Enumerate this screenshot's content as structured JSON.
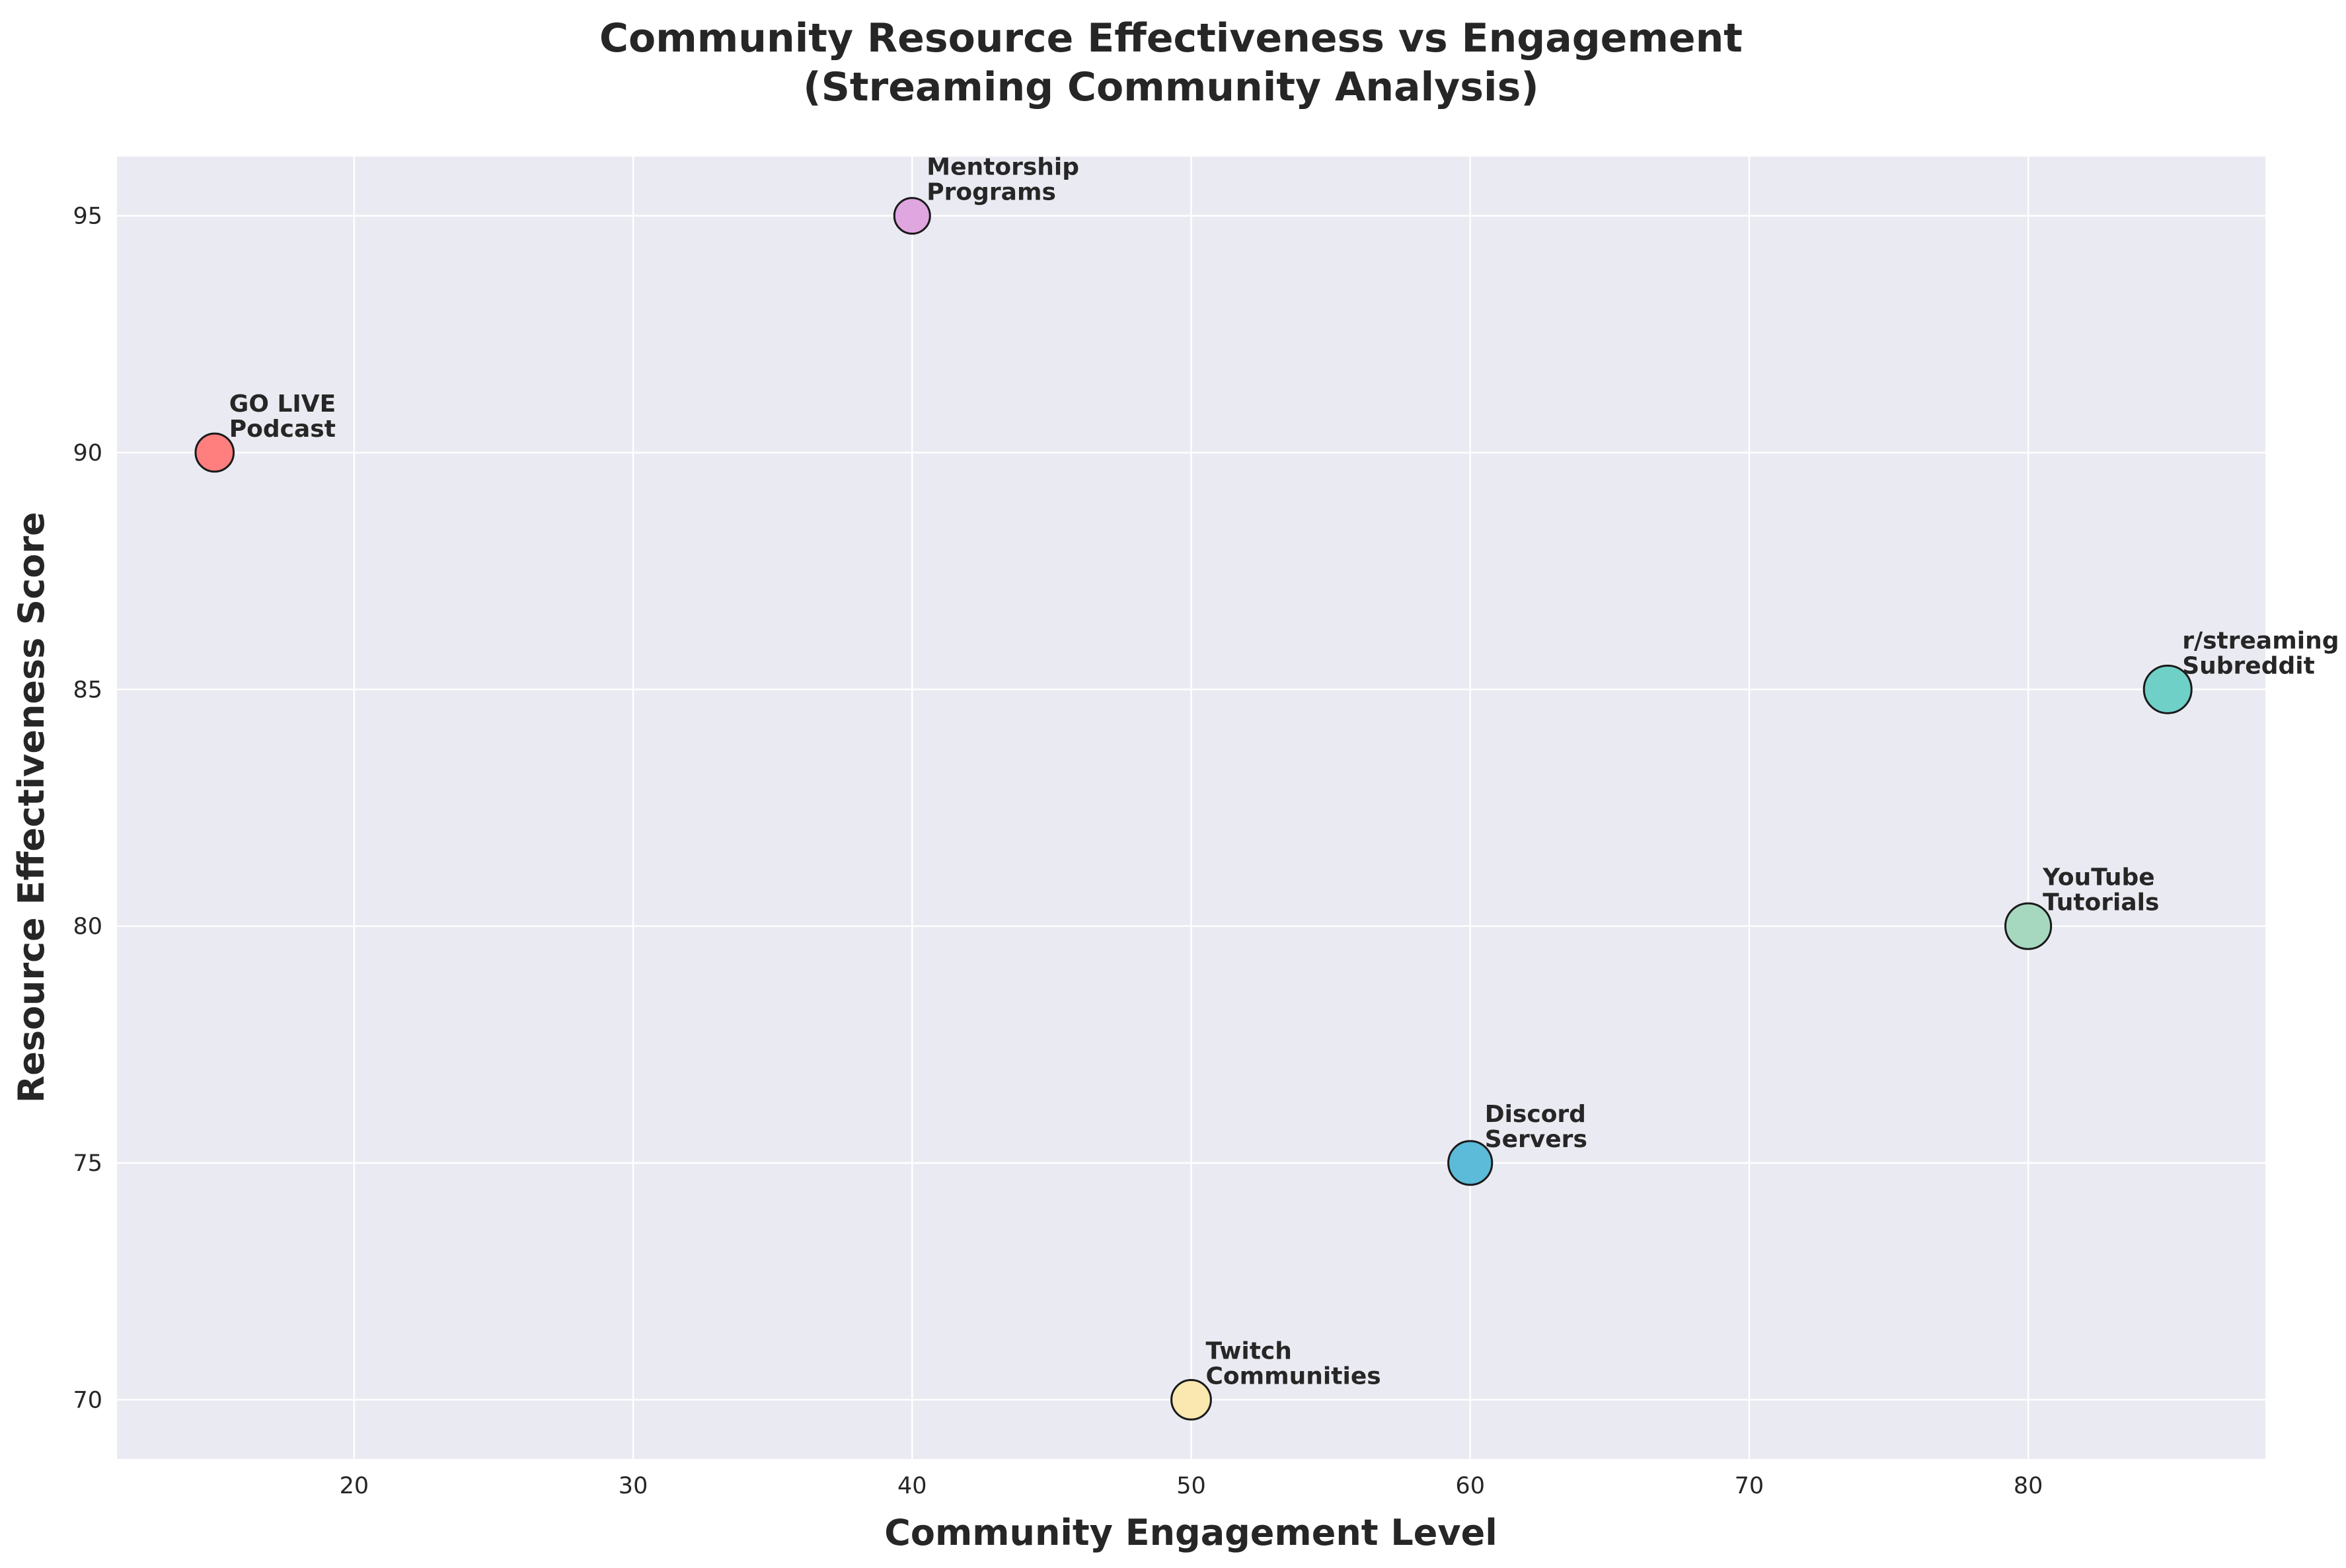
{
  "chart_data": {
    "type": "scatter",
    "title": "Community Resource Effectiveness vs Engagement\n(Streaming Community Analysis)",
    "xlabel": "Community Engagement Level",
    "ylabel": "Resource Effectiveness Score",
    "xlim": [
      11.5,
      88.5
    ],
    "ylim": [
      68.75,
      96.25
    ],
    "xticks": [
      20,
      30,
      40,
      50,
      60,
      70,
      80
    ],
    "yticks": [
      70,
      75,
      80,
      85,
      90,
      95
    ],
    "grid": true,
    "background": "#eaeaf2",
    "grid_color": "#ffffff",
    "points": [
      {
        "label": "GO LIVE\nPodcast",
        "x": 15,
        "y": 90,
        "size": 0.8,
        "color": "#ff7f7f"
      },
      {
        "label": "r/streaming\nSubreddit",
        "x": 85,
        "y": 85,
        "size": 1.0,
        "color": "#6fd0c8"
      },
      {
        "label": "Discord\nServers",
        "x": 60,
        "y": 75,
        "size": 0.92,
        "color": "#5bbbd8"
      },
      {
        "label": "YouTube\nTutorials",
        "x": 80,
        "y": 80,
        "size": 0.96,
        "color": "#a6d8c0"
      },
      {
        "label": "Twitch\nCommunities",
        "x": 50,
        "y": 70,
        "size": 0.83,
        "color": "#fae8b0"
      },
      {
        "label": "Mentorship\nPrograms",
        "x": 40,
        "y": 95,
        "size": 0.75,
        "color": "#dfa6e0"
      }
    ]
  }
}
